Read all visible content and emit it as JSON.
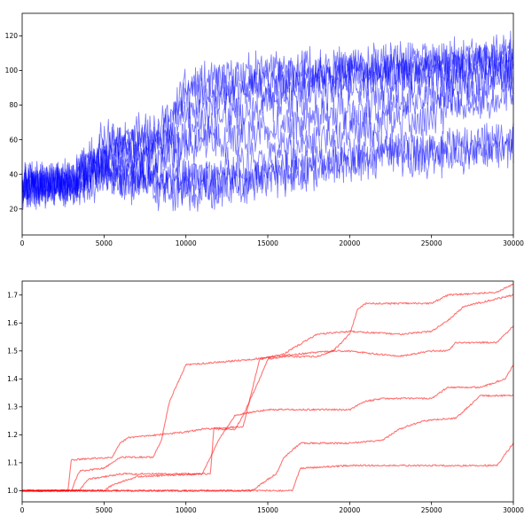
{
  "chart_data": [
    {
      "type": "line",
      "title": "",
      "xlabel": "",
      "ylabel": "",
      "xlim": [
        0,
        30000
      ],
      "ylim": [
        5,
        133
      ],
      "grid": false,
      "legend": "none",
      "color": "#0000ff",
      "series_opacity": 0.5,
      "noise_amplitude": 9,
      "x_ticks": [
        0,
        5000,
        10000,
        15000,
        20000,
        25000,
        30000
      ],
      "y_ticks": [
        20,
        40,
        60,
        80,
        100,
        120
      ],
      "series": [
        {
          "points": [
            [
              0,
              35
            ],
            [
              3000,
              36
            ],
            [
              5000,
              55
            ],
            [
              9000,
              70
            ],
            [
              10000,
              90
            ],
            [
              15000,
              100
            ],
            [
              20000,
              102
            ],
            [
              25000,
              105
            ],
            [
              30000,
              110
            ]
          ]
        },
        {
          "points": [
            [
              0,
              32
            ],
            [
              3000,
              36
            ],
            [
              5000,
              60
            ],
            [
              8000,
              55
            ],
            [
              10000,
              85
            ],
            [
              15000,
              95
            ],
            [
              20000,
              100
            ],
            [
              25000,
              102
            ],
            [
              30000,
              108
            ]
          ]
        },
        {
          "points": [
            [
              0,
              36
            ],
            [
              3000,
              35
            ],
            [
              5000,
              50
            ],
            [
              9000,
              65
            ],
            [
              10000,
              75
            ],
            [
              15000,
              90
            ],
            [
              20000,
              98
            ],
            [
              25000,
              100
            ],
            [
              30000,
              104
            ]
          ]
        },
        {
          "points": [
            [
              0,
              33
            ],
            [
              3000,
              34
            ],
            [
              5000,
              45
            ],
            [
              8000,
              45
            ],
            [
              10000,
              60
            ],
            [
              12000,
              70
            ],
            [
              15000,
              80
            ],
            [
              20000,
              92
            ],
            [
              25000,
              95
            ],
            [
              30000,
              100
            ]
          ]
        },
        {
          "points": [
            [
              0,
              34
            ],
            [
              3000,
              35
            ],
            [
              5000,
              48
            ],
            [
              8000,
              52
            ],
            [
              10000,
              58
            ],
            [
              15000,
              65
            ],
            [
              18000,
              72
            ],
            [
              20000,
              78
            ],
            [
              25000,
              85
            ],
            [
              30000,
              95
            ]
          ]
        },
        {
          "points": [
            [
              0,
              35
            ],
            [
              3000,
              35
            ],
            [
              5000,
              40
            ],
            [
              8000,
              35
            ],
            [
              10000,
              40
            ],
            [
              14000,
              45
            ],
            [
              17000,
              55
            ],
            [
              20000,
              65
            ],
            [
              25000,
              75
            ],
            [
              30000,
              88
            ]
          ]
        },
        {
          "points": [
            [
              0,
              32
            ],
            [
              3000,
              33
            ],
            [
              5000,
              38
            ],
            [
              8000,
              32
            ],
            [
              10000,
              30
            ],
            [
              14000,
              35
            ],
            [
              17000,
              45
            ],
            [
              20000,
              50
            ],
            [
              25000,
              55
            ],
            [
              30000,
              62
            ]
          ]
        },
        {
          "points": [
            [
              0,
              34
            ],
            [
              3000,
              34
            ],
            [
              5000,
              42
            ],
            [
              8000,
              40
            ],
            [
              10000,
              35
            ],
            [
              14000,
              38
            ],
            [
              17000,
              40
            ],
            [
              20000,
              48
            ],
            [
              25000,
              50
            ],
            [
              30000,
              55
            ]
          ]
        }
      ]
    },
    {
      "type": "line",
      "title": "",
      "xlabel": "",
      "ylabel": "",
      "xlim": [
        0,
        30000
      ],
      "ylim": [
        0.96,
        1.75
      ],
      "grid": false,
      "legend": "none",
      "color": "#ff0000",
      "series_opacity": 0.55,
      "noise_amplitude": 0.003,
      "x_ticks": [
        0,
        5000,
        10000,
        15000,
        20000,
        25000,
        30000
      ],
      "y_ticks": [
        1.0,
        1.1,
        1.2,
        1.3,
        1.4,
        1.5,
        1.6,
        1.7
      ],
      "y_tick_labels": [
        "1.0",
        "1.1",
        "1.2",
        "1.3",
        "1.4",
        "1.5",
        "1.6",
        "1.7"
      ],
      "series": [
        {
          "points": [
            [
              0,
              1.0
            ],
            [
              2800,
              1.0
            ],
            [
              3000,
              1.11
            ],
            [
              5500,
              1.12
            ],
            [
              6000,
              1.17
            ],
            [
              6500,
              1.19
            ],
            [
              10000,
              1.21
            ],
            [
              11000,
              1.22
            ],
            [
              13500,
              1.23
            ],
            [
              14500,
              1.47
            ],
            [
              16000,
              1.49
            ],
            [
              18000,
              1.56
            ],
            [
              20000,
              1.57
            ],
            [
              23000,
              1.56
            ],
            [
              25000,
              1.57
            ],
            [
              26000,
              1.61
            ],
            [
              27000,
              1.66
            ],
            [
              30000,
              1.7
            ]
          ]
        },
        {
          "points": [
            [
              0,
              1.0
            ],
            [
              3000,
              1.0
            ],
            [
              3500,
              1.07
            ],
            [
              5000,
              1.08
            ],
            [
              6000,
              1.12
            ],
            [
              8000,
              1.12
            ],
            [
              8500,
              1.18
            ],
            [
              9000,
              1.32
            ],
            [
              10000,
              1.45
            ],
            [
              14000,
              1.47
            ],
            [
              17000,
              1.49
            ],
            [
              19000,
              1.5
            ],
            [
              20000,
              1.56
            ],
            [
              20500,
              1.65
            ],
            [
              21000,
              1.67
            ],
            [
              25000,
              1.67
            ],
            [
              26000,
              1.7
            ],
            [
              29000,
              1.71
            ],
            [
              30000,
              1.74
            ]
          ]
        },
        {
          "points": [
            [
              0,
              1.0
            ],
            [
              3500,
              1.0
            ],
            [
              4000,
              1.04
            ],
            [
              6000,
              1.06
            ],
            [
              11500,
              1.06
            ],
            [
              11700,
              1.22
            ],
            [
              13000,
              1.22
            ],
            [
              13500,
              1.27
            ],
            [
              14500,
              1.4
            ],
            [
              15000,
              1.47
            ],
            [
              16000,
              1.48
            ],
            [
              18000,
              1.48
            ],
            [
              19000,
              1.5
            ],
            [
              20000,
              1.5
            ],
            [
              23000,
              1.48
            ],
            [
              25000,
              1.5
            ],
            [
              26000,
              1.5
            ],
            [
              26500,
              1.53
            ],
            [
              29000,
              1.53
            ],
            [
              30000,
              1.59
            ]
          ]
        },
        {
          "points": [
            [
              0,
              1.0
            ],
            [
              5000,
              1.0
            ],
            [
              5500,
              1.02
            ],
            [
              7000,
              1.05
            ],
            [
              11000,
              1.06
            ],
            [
              12000,
              1.18
            ],
            [
              13000,
              1.27
            ],
            [
              15000,
              1.29
            ],
            [
              20000,
              1.29
            ],
            [
              21000,
              1.32
            ],
            [
              22000,
              1.33
            ],
            [
              25000,
              1.33
            ],
            [
              26000,
              1.37
            ],
            [
              28000,
              1.37
            ],
            [
              29500,
              1.4
            ],
            [
              30000,
              1.45
            ]
          ]
        },
        {
          "points": [
            [
              0,
              1.0
            ],
            [
              8000,
              1.0
            ],
            [
              14000,
              1.0
            ],
            [
              15500,
              1.06
            ],
            [
              16000,
              1.12
            ],
            [
              17000,
              1.17
            ],
            [
              20000,
              1.17
            ],
            [
              22000,
              1.18
            ],
            [
              23000,
              1.22
            ],
            [
              24500,
              1.25
            ],
            [
              26500,
              1.26
            ],
            [
              28000,
              1.34
            ],
            [
              30000,
              1.34
            ]
          ]
        },
        {
          "points": [
            [
              0,
              1.0
            ],
            [
              16500,
              1.0
            ],
            [
              17000,
              1.08
            ],
            [
              20000,
              1.09
            ],
            [
              25000,
              1.09
            ],
            [
              29000,
              1.09
            ],
            [
              30000,
              1.17
            ]
          ]
        }
      ]
    }
  ]
}
